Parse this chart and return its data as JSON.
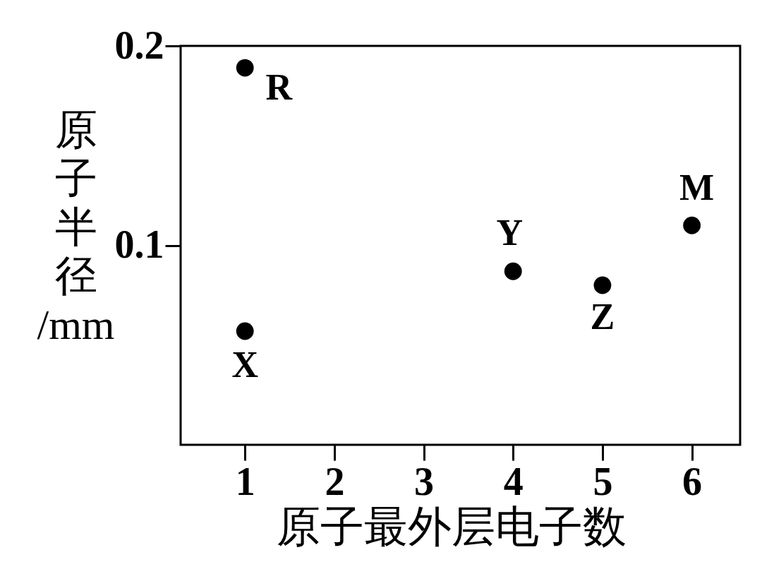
{
  "chart_data": {
    "type": "scatter",
    "xlabel": "原子最外层电子数",
    "ylabel": "原子半径/mm",
    "x": [
      1,
      1,
      4,
      5,
      6
    ],
    "values": [
      0.189,
      0.057,
      0.087,
      0.08,
      0.11
    ],
    "color": "#000000",
    "marker": "circle",
    "xlim": [
      0.28,
      6.54
    ],
    "ylim": [
      0,
      0.2
    ],
    "xticks": [
      1,
      2,
      3,
      4,
      5,
      6
    ],
    "yticks": [
      0.1,
      0.2
    ],
    "annotations": [
      {
        "text": "R",
        "x": 1,
        "y": 0.189
      },
      {
        "text": "X",
        "x": 1,
        "y": 0.057
      },
      {
        "text": "Y",
        "x": 4,
        "y": 0.087
      },
      {
        "text": "Z",
        "x": 5,
        "y": 0.08
      },
      {
        "text": "M",
        "x": 6,
        "y": 0.11
      }
    ]
  }
}
